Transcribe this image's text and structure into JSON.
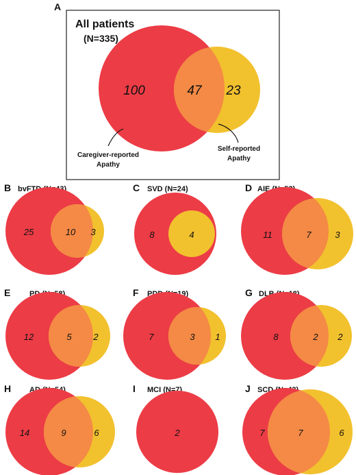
{
  "colors": {
    "caregiver": "#ec3c46",
    "self": "#f2c12e",
    "overlap": "#f48a45",
    "box_border": "#222222"
  },
  "panel_a": {
    "letter": "A",
    "title": "All patients",
    "subtitle": "(N=335)",
    "caregiver_only": "100",
    "overlap": "47",
    "self_only": "23",
    "caregiver_label": [
      "Caregiver-reported",
      "Apathy"
    ],
    "self_label": [
      "Self-reported",
      "Apathy"
    ]
  },
  "panels": [
    {
      "letter": "B",
      "title": "bvFTD (N=43)",
      "left": "25",
      "overlap": "10",
      "right": "3"
    },
    {
      "letter": "C",
      "title": "SVD (N=24)",
      "left": "8",
      "overlap": "4",
      "right": ""
    },
    {
      "letter": "D",
      "title": "AIE (N=53)",
      "left": "11",
      "overlap": "7",
      "right": "3"
    },
    {
      "letter": "E",
      "title": "PD (N=58)",
      "left": "12",
      "overlap": "5",
      "right": "2"
    },
    {
      "letter": "F",
      "title": "PDD (N=19)",
      "left": "7",
      "overlap": "3",
      "right": "1"
    },
    {
      "letter": "G",
      "title": "DLB (N=18)",
      "left": "8",
      "overlap": "2",
      "right": "2"
    },
    {
      "letter": "H",
      "title": "AD (N=54)",
      "left": "14",
      "overlap": "9",
      "right": "6"
    },
    {
      "letter": "I",
      "title": "MCI (N=7)",
      "left": "2",
      "overlap": "",
      "right": ""
    },
    {
      "letter": "J",
      "title": "SCD (N=43)",
      "left": "7",
      "overlap": "7",
      "right": "6"
    }
  ]
}
